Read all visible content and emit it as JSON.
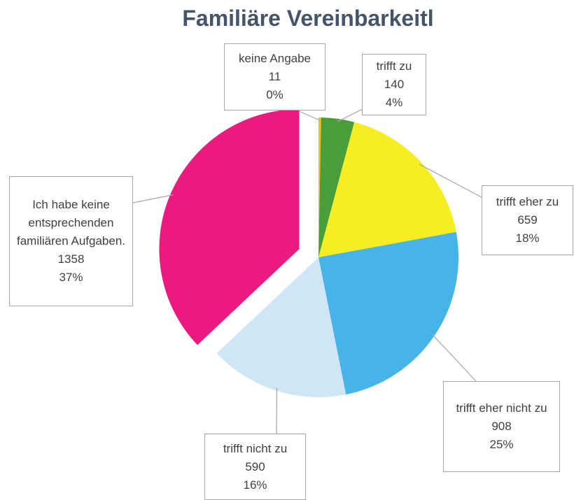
{
  "chart_data": {
    "type": "pie",
    "title": "Familiäre Vereinbarkeitl",
    "categories": [
      "keine Angabe",
      "trifft zu",
      "trifft eher zu",
      "trifft eher nicht zu",
      "trifft nicht zu",
      "Ich habe keine entsprechenden familiären Aufgaben."
    ],
    "values": [
      11,
      140,
      659,
      908,
      590,
      1358
    ],
    "percent_labels": [
      "0%",
      "4%",
      "18%",
      "25%",
      "16%",
      "37%"
    ],
    "colors": [
      "#f2c21b",
      "#4a9e3a",
      "#f6ee22",
      "#47b4e9",
      "#cfe6f6",
      "#ea1a7f"
    ],
    "exploded": [
      false,
      false,
      false,
      false,
      false,
      true
    ]
  }
}
